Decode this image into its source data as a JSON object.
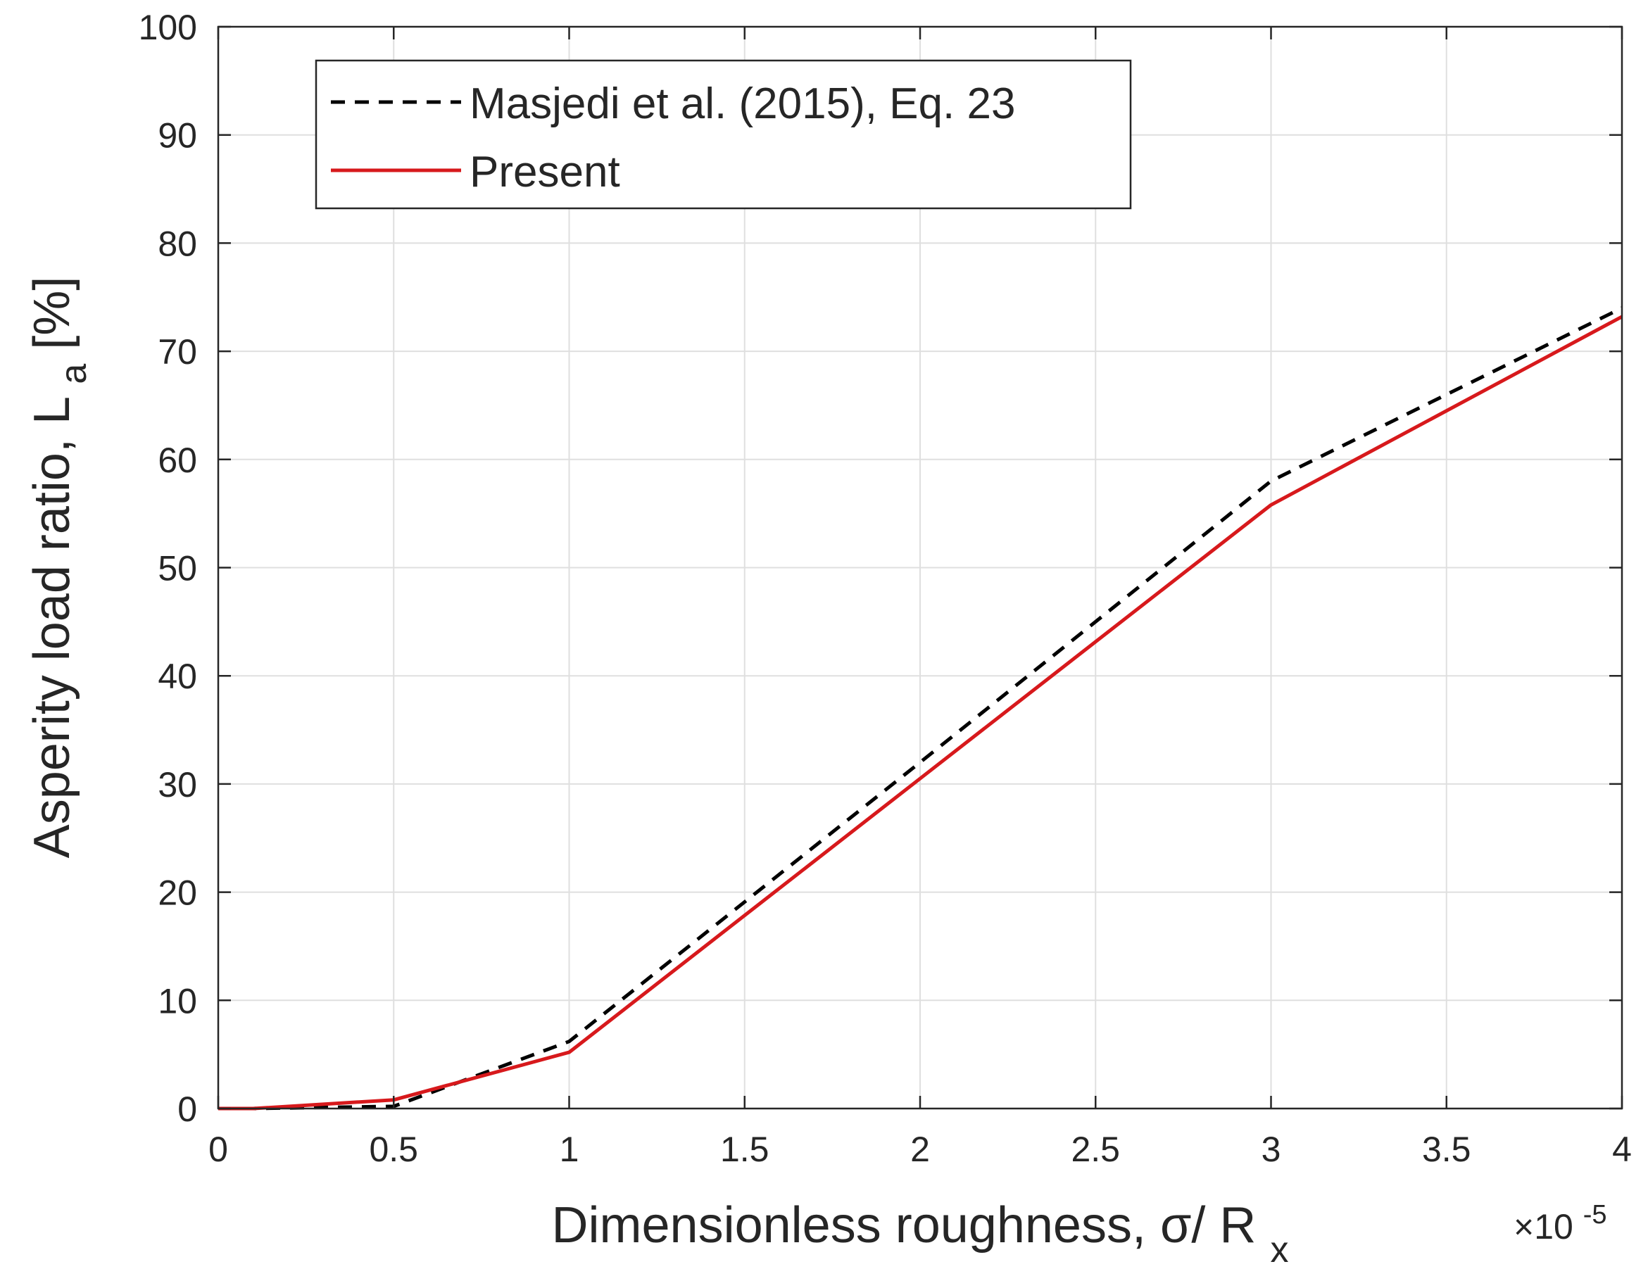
{
  "chart_data": {
    "type": "line",
    "title": "",
    "xlabel": "Dimensionless roughness, σ/ R",
    "xlabel_sub": "x",
    "ylabel": "Asperity load ratio, L",
    "ylabel_sub": "a",
    "ylabel_suffix": " [%]",
    "x_exponent_base": "×10",
    "x_exponent_power": "-5",
    "xlim": [
      0,
      4
    ],
    "ylim": [
      0,
      100
    ],
    "xticks": [
      0,
      0.5,
      1,
      1.5,
      2,
      2.5,
      3,
      3.5,
      4
    ],
    "xtick_labels": [
      "0",
      "0.5",
      "1",
      "1.5",
      "2",
      "2.5",
      "3",
      "3.5",
      "4"
    ],
    "yticks": [
      0,
      10,
      20,
      30,
      40,
      50,
      60,
      70,
      80,
      90,
      100
    ],
    "ytick_labels": [
      "0",
      "10",
      "20",
      "30",
      "40",
      "50",
      "60",
      "70",
      "80",
      "90",
      "100"
    ],
    "grid": true,
    "legend_position": "top-left",
    "series": [
      {
        "name": "Masjedi et al. (2015), Eq. 23",
        "color": "#000000",
        "style": "dashed",
        "x": [
          0,
          0.1,
          0.5,
          1,
          2,
          3,
          4
        ],
        "y": [
          0,
          0,
          0.2,
          6.2,
          32,
          58,
          74
        ]
      },
      {
        "name": "Present",
        "color": "#d7191c",
        "style": "solid",
        "x": [
          0,
          0.1,
          0.5,
          1,
          2,
          3,
          4
        ],
        "y": [
          0,
          0,
          0.8,
          5.2,
          30.5,
          55.8,
          73.2
        ]
      }
    ]
  }
}
